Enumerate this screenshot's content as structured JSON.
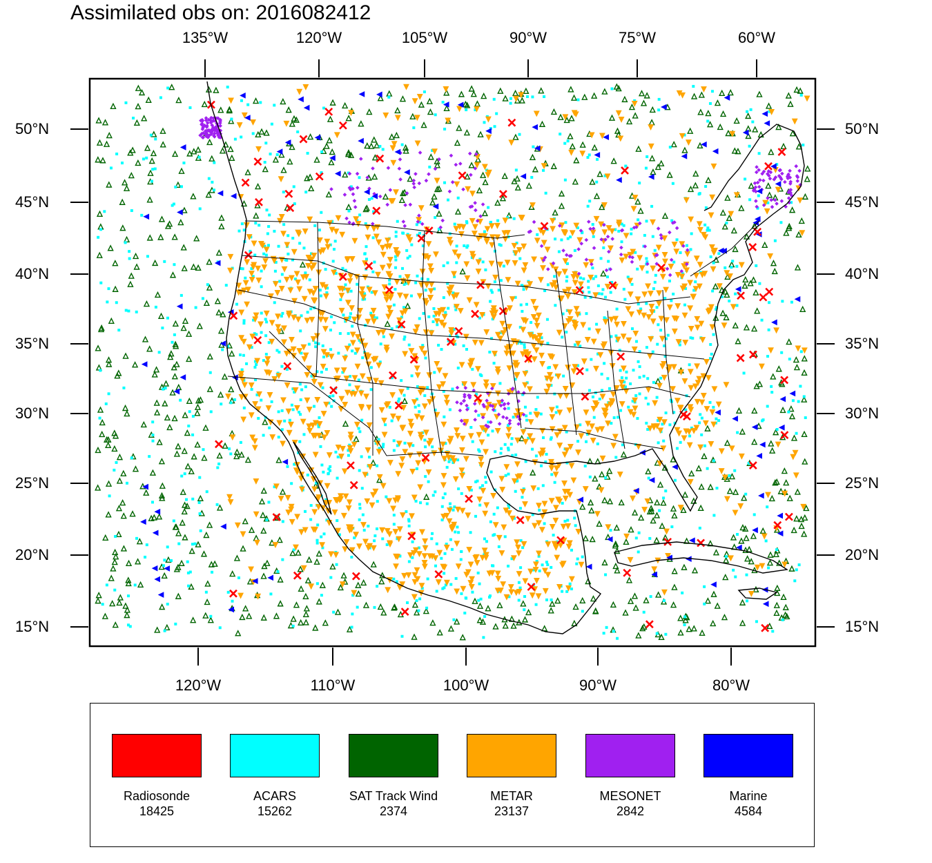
{
  "title": "Assimilated obs on: 2016082412",
  "top_lon_labels": [
    "135°W",
    "120°W",
    "105°W",
    "90°W",
    "75°W",
    "60°W"
  ],
  "bottom_lon_labels": [
    "120°W",
    "110°W",
    "100°W",
    "90°W",
    "80°W"
  ],
  "lat_labels": [
    "50°N",
    "45°N",
    "40°N",
    "35°N",
    "30°N",
    "25°N",
    "20°N",
    "15°N"
  ],
  "colors": {
    "radiosonde": "#ff0000",
    "acars": "#00ffff",
    "sat_track_wind": "#006400",
    "metar": "#ffa500",
    "mesonet": "#a020f0",
    "marine": "#0000ff"
  },
  "legend": [
    {
      "name": "Radiosonde",
      "count": "18425",
      "color": "#ff0000",
      "marker": "x"
    },
    {
      "name": "ACARS",
      "count": "15262",
      "color": "#00ffff",
      "marker": "square"
    },
    {
      "name": "SAT Track Wind",
      "count": "2374",
      "color": "#006400",
      "marker": "triangle-up"
    },
    {
      "name": "METAR",
      "count": "23137",
      "color": "#ffa500",
      "marker": "triangle-down"
    },
    {
      "name": "MESONET",
      "count": "2842",
      "color": "#a020f0",
      "marker": "diamond"
    },
    {
      "name": "Marine",
      "count": "4584",
      "color": "#0000ff",
      "marker": "triangle-left"
    }
  ]
}
